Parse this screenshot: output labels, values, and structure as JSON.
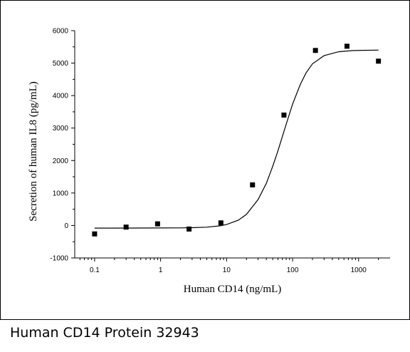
{
  "caption": "Human CD14 Protein 32943",
  "chart_data": {
    "type": "scatter",
    "title": "",
    "xlabel": "Human CD14 (ng/mL)",
    "ylabel": "Secretion of human IL8 (pg/mL)",
    "x_scale": "log",
    "xlim": [
      0.05,
      3000
    ],
    "ylim": [
      -1000,
      6000
    ],
    "x_ticks": [
      {
        "value": 0.1,
        "label": "0.1"
      },
      {
        "value": 1,
        "label": "1"
      },
      {
        "value": 10,
        "label": "10"
      },
      {
        "value": 100,
        "label": "100"
      },
      {
        "value": 1000,
        "label": "1000"
      }
    ],
    "y_ticks": [
      {
        "value": -1000,
        "label": "-1000"
      },
      {
        "value": 0,
        "label": "0"
      },
      {
        "value": 1000,
        "label": "1000"
      },
      {
        "value": 2000,
        "label": "2000"
      },
      {
        "value": 3000,
        "label": "3000"
      },
      {
        "value": 4000,
        "label": "4000"
      },
      {
        "value": 5000,
        "label": "5000"
      },
      {
        "value": 6000,
        "label": "6000"
      }
    ],
    "grid": false,
    "legend": "none",
    "series": [
      {
        "kind": "points",
        "x": [
          0.1,
          0.3,
          0.9,
          2.7,
          8.2,
          24.7,
          74,
          222,
          667,
          2000
        ],
        "y": [
          -260,
          -50,
          50,
          -110,
          80,
          1250,
          3400,
          5390,
          5520,
          5060
        ]
      },
      {
        "kind": "fit-line",
        "x": [
          0.1,
          0.2,
          0.5,
          1,
          2,
          3,
          5,
          8,
          10,
          15,
          20,
          30,
          40,
          50,
          60,
          70,
          80,
          100,
          130,
          160,
          200,
          300,
          500,
          800,
          1200,
          2000
        ],
        "y": [
          -80,
          -80,
          -79,
          -77,
          -73,
          -68,
          -52,
          -10,
          30,
          160,
          340,
          800,
          1300,
          1820,
          2300,
          2740,
          3120,
          3740,
          4330,
          4700,
          4980,
          5230,
          5350,
          5385,
          5395,
          5400
        ]
      }
    ],
    "colors": {
      "marker": "#000000",
      "line": "#000000"
    }
  }
}
